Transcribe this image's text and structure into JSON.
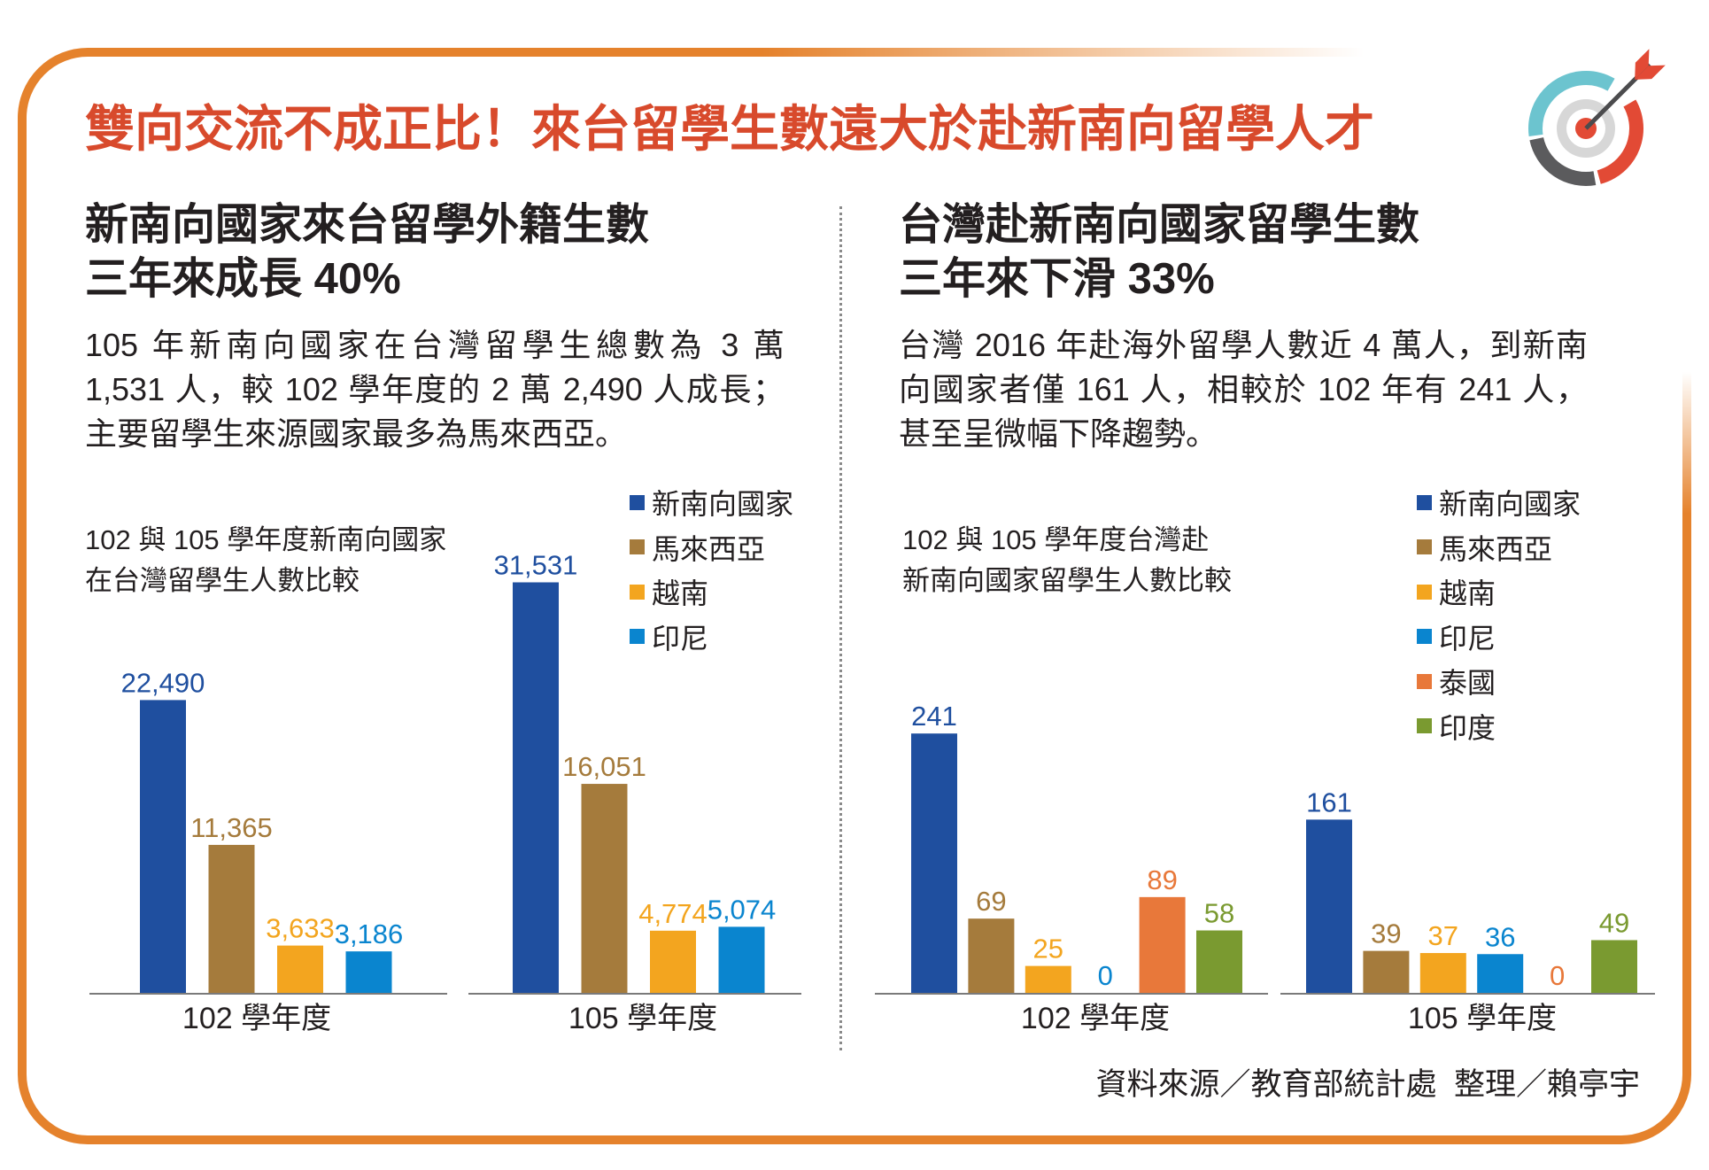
{
  "title": "雙向交流不成正比！來台留學生數遠大於赴新南向留學人才",
  "colors": {
    "title": "#d84a2c",
    "frame": "#e5822c",
    "text": "#231f20"
  },
  "icon": "target-arrow-icon",
  "left_panel": {
    "heading_lines": [
      "新南向國家來台留學外籍生數",
      "三年來成長 40%"
    ],
    "paragraph_lines": [
      "105 年新南向國家在台灣留學生總數為 3 萬",
      "1,531 人，較 102 學年度的 2 萬 2,490 人成長；",
      "主要留學生來源國家最多為馬來西亞。"
    ]
  },
  "right_panel": {
    "heading_lines": [
      "台灣赴新南向國家留學生數",
      "三年來下滑 33%"
    ],
    "paragraph_lines": [
      "台灣 2016 年赴海外留學人數近 4 萬人，到新南",
      "向國家者僅 161 人，相較於 102 年有 241 人，",
      "甚至呈微幅下降趨勢。"
    ]
  },
  "source": "資料來源／教育部統計處  整理／賴亭宇",
  "chart_data": [
    {
      "type": "bar",
      "title_lines": [
        "102 與 105 學年度新南向國家",
        "在台灣留學生人數比較"
      ],
      "categories": [
        "102 學年度",
        "105 學年度"
      ],
      "legend_position": "top-right",
      "grid": false,
      "series": [
        {
          "name": "新南向國家",
          "color": "#1f4f9f",
          "values": [
            22490,
            31531
          ],
          "labels": [
            "22,490",
            "31,531"
          ]
        },
        {
          "name": "馬來西亞",
          "color": "#a57b3c",
          "values": [
            11365,
            16051
          ],
          "labels": [
            "11,365",
            "16,051"
          ]
        },
        {
          "name": "越南",
          "color": "#f3a51f",
          "values": [
            3633,
            4774
          ],
          "labels": [
            "3,633",
            "4,774"
          ]
        },
        {
          "name": "印尼",
          "color": "#0a85cf",
          "values": [
            3186,
            5074
          ],
          "labels": [
            "3,186",
            "5,074"
          ]
        }
      ]
    },
    {
      "type": "bar",
      "title_lines": [
        "102 與 105 學年度台灣赴",
        "新南向國家留學生人數比較"
      ],
      "categories": [
        "102 學年度",
        "105 學年度"
      ],
      "legend_position": "top-right",
      "grid": false,
      "series": [
        {
          "name": "新南向國家",
          "color": "#1f4f9f",
          "values": [
            241,
            161
          ],
          "labels": [
            "241",
            "161"
          ]
        },
        {
          "name": "馬來西亞",
          "color": "#a57b3c",
          "values": [
            69,
            39
          ],
          "labels": [
            "69",
            "39"
          ]
        },
        {
          "name": "越南",
          "color": "#f3a51f",
          "values": [
            25,
            37
          ],
          "labels": [
            "25",
            "37"
          ]
        },
        {
          "name": "印尼",
          "color": "#0a85cf",
          "values": [
            0,
            36
          ],
          "labels": [
            "0",
            "36"
          ]
        },
        {
          "name": "泰國",
          "color": "#e8783a",
          "values": [
            89,
            0
          ],
          "labels": [
            "89",
            "0"
          ]
        },
        {
          "name": "印度",
          "color": "#7a9a30",
          "values": [
            58,
            49
          ],
          "labels": [
            "58",
            "49"
          ]
        }
      ]
    }
  ]
}
